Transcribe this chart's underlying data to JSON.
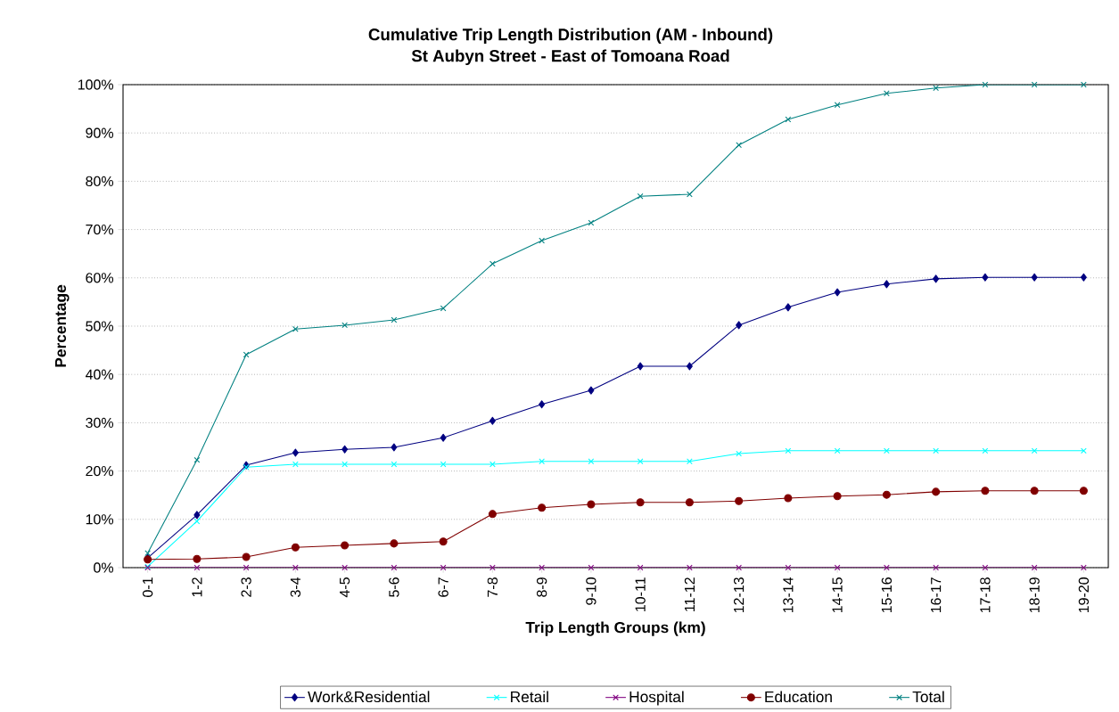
{
  "chart_data": {
    "type": "line",
    "title": "Cumulative Trip Length Distribution (AM - Inbound)",
    "subtitle": "St Aubyn Street - East of Tomoana Road",
    "xlabel": "Trip Length Groups (km)",
    "ylabel": "Percentage",
    "categories": [
      "0-1",
      "1-2",
      "2-3",
      "3-4",
      "4-5",
      "5-6",
      "6-7",
      "7-8",
      "8-9",
      "9-10",
      "10-11",
      "11-12",
      "12-13",
      "13-14",
      "14-15",
      "15-16",
      "16-17",
      "17-18",
      "18-19",
      "19-20"
    ],
    "series": [
      {
        "name": "Work&Residential",
        "color": "#000080",
        "marker": "diamond",
        "values": [
          2.0,
          10.9,
          21.2,
          23.8,
          24.5,
          24.9,
          26.9,
          30.4,
          33.8,
          36.7,
          41.7,
          41.7,
          50.2,
          53.9,
          57.0,
          58.7,
          59.8,
          60.1,
          60.1,
          60.1
        ]
      },
      {
        "name": "Retail",
        "color": "#00ffff",
        "marker": "cross",
        "values": [
          0.2,
          9.6,
          20.8,
          21.4,
          21.4,
          21.4,
          21.4,
          21.4,
          22.0,
          22.0,
          22.0,
          22.0,
          23.6,
          24.2,
          24.2,
          24.2,
          24.2,
          24.2,
          24.2,
          24.2
        ]
      },
      {
        "name": "Hospital",
        "color": "#800080",
        "marker": "cross",
        "values": [
          0,
          0,
          0,
          0,
          0,
          0,
          0,
          0,
          0,
          0,
          0,
          0,
          0,
          0,
          0,
          0,
          0,
          0,
          0,
          0
        ]
      },
      {
        "name": "Education",
        "color": "#800000",
        "marker": "circle",
        "values": [
          1.7,
          1.8,
          2.2,
          4.2,
          4.6,
          5.0,
          5.4,
          11.1,
          12.4,
          13.1,
          13.5,
          13.5,
          13.8,
          14.4,
          14.8,
          15.1,
          15.7,
          15.9,
          15.9,
          15.9
        ]
      },
      {
        "name": "Total",
        "color": "#008080",
        "marker": "cross",
        "values": [
          3.0,
          22.3,
          44.1,
          49.4,
          50.2,
          51.3,
          53.7,
          62.9,
          67.7,
          71.4,
          76.9,
          77.3,
          87.5,
          92.8,
          95.8,
          98.2,
          99.3,
          100,
          100,
          100
        ]
      }
    ],
    "ylim": [
      0,
      100
    ],
    "yticks": [
      {
        "value": 0,
        "label": "0%"
      },
      {
        "value": 10,
        "label": "10%"
      },
      {
        "value": 20,
        "label": "20%"
      },
      {
        "value": 30,
        "label": "30%"
      },
      {
        "value": 40,
        "label": "40%"
      },
      {
        "value": 50,
        "label": "50%"
      },
      {
        "value": 60,
        "label": "60%"
      },
      {
        "value": 70,
        "label": "70%"
      },
      {
        "value": 80,
        "label": "80%"
      },
      {
        "value": 90,
        "label": "90%"
      },
      {
        "value": 100,
        "label": "100%"
      }
    ],
    "grid": "y",
    "legend": "bottom",
    "line_style": "solid"
  }
}
